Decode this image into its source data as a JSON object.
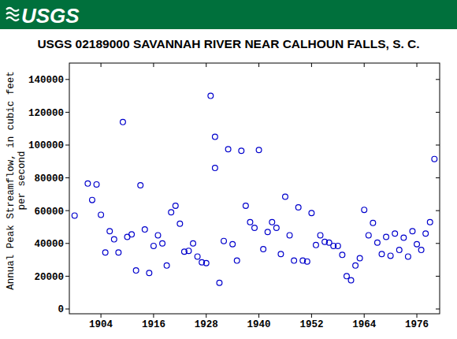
{
  "header": {
    "logo_text": "USGS"
  },
  "chart_data": {
    "type": "scatter",
    "title": "USGS 02189000 SAVANNAH RIVER NEAR CALHOUN FALLS, S. C.",
    "y_label": [
      "Annual Peak Streamflow, in cubic feet",
      "per second"
    ],
    "x": [
      1898,
      1901,
      1902,
      1903,
      1904,
      1905,
      1906,
      1907,
      1908,
      1909,
      1910,
      1911,
      1912,
      1913,
      1914,
      1915,
      1916,
      1917,
      1918,
      1919,
      1920,
      1921,
      1922,
      1923,
      1924,
      1925,
      1926,
      1927,
      1928,
      1929,
      1930,
      1930,
      1931,
      1932,
      1933,
      1934,
      1935,
      1936,
      1937,
      1938,
      1939,
      1940,
      1941,
      1942,
      1943,
      1944,
      1945,
      1946,
      1947,
      1948,
      1949,
      1950,
      1951,
      1952,
      1953,
      1954,
      1955,
      1956,
      1957,
      1958,
      1959,
      1960,
      1961,
      1962,
      1963,
      1964,
      1965,
      1966,
      1967,
      1968,
      1969,
      1970,
      1971,
      1972,
      1973,
      1974,
      1975,
      1976,
      1977,
      1978,
      1979,
      1980
    ],
    "values": [
      57000,
      76500,
      66500,
      76000,
      57500,
      34500,
      47500,
      42500,
      34500,
      114000,
      44000,
      45500,
      23500,
      75500,
      48500,
      22000,
      38500,
      45000,
      40000,
      26500,
      59000,
      63000,
      52000,
      35000,
      35500,
      40000,
      32000,
      28500,
      28000,
      130000,
      105000,
      86000,
      16000,
      41500,
      97500,
      39500,
      29500,
      96500,
      63000,
      53000,
      49500,
      97000,
      36500,
      47000,
      53000,
      49500,
      33500,
      68500,
      45000,
      29500,
      62000,
      29500,
      29000,
      58500,
      39000,
      45000,
      41000,
      40500,
      38500,
      38500,
      33000,
      20000,
      17500,
      26500,
      31000,
      60500,
      45000,
      52500,
      40500,
      33500,
      44000,
      32500,
      46000,
      36000,
      43500,
      32000,
      47500,
      39500,
      36000,
      46000,
      53000,
      91500
    ],
    "color": "#0000cc",
    "marker": "open-circle",
    "xlim": [
      1896.8,
      1981.2
    ],
    "ylim": [
      -2900,
      150000
    ],
    "xticks": [
      1904,
      1916,
      1928,
      1940,
      1952,
      1964,
      1976
    ],
    "yticks": [
      0,
      20000,
      40000,
      60000,
      80000,
      100000,
      120000,
      140000
    ],
    "grid": false
  }
}
